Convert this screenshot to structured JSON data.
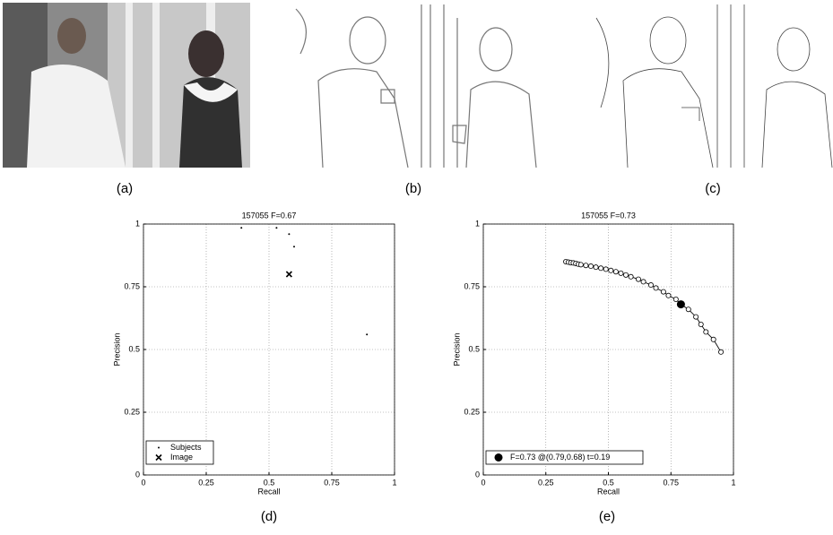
{
  "figure_labels": [
    "(a)",
    "(b)",
    "(c)",
    "(d)",
    "(e)"
  ],
  "chart_data": [
    {
      "type": "scatter",
      "title": "157055 F=0.67",
      "xlabel": "Recall",
      "ylabel": "Precision",
      "xlim": [
        0,
        1
      ],
      "ylim": [
        0,
        1
      ],
      "xticks": [
        0,
        0.25,
        0.5,
        0.75,
        1
      ],
      "yticks": [
        0,
        0.25,
        0.5,
        0.75,
        1
      ],
      "grid": true,
      "legend": "lower left",
      "series": [
        {
          "name": "Subjects",
          "color": "#000000",
          "marker": "dot",
          "x": [
            0.39,
            0.53,
            0.58,
            0.6,
            0.89
          ],
          "values": [
            0.985,
            0.985,
            0.96,
            0.91,
            0.56
          ]
        },
        {
          "name": "Image",
          "color": "#000000",
          "marker": "x",
          "x": [
            0.58
          ],
          "values": [
            0.8
          ]
        }
      ]
    },
    {
      "type": "line",
      "title": "157055 F=0.73",
      "xlabel": "Recall",
      "ylabel": "Precision",
      "xlim": [
        0,
        1
      ],
      "ylim": [
        0,
        1
      ],
      "xticks": [
        0,
        0.25,
        0.5,
        0.75,
        1
      ],
      "yticks": [
        0,
        0.25,
        0.5,
        0.75,
        1
      ],
      "grid": true,
      "legend": "lower left",
      "series": [
        {
          "color": "#000000",
          "marker": "circle",
          "line": true,
          "x": [
            0.33,
            0.34,
            0.35,
            0.36,
            0.37,
            0.38,
            0.39,
            0.41,
            0.43,
            0.45,
            0.47,
            0.49,
            0.51,
            0.53,
            0.55,
            0.57,
            0.59,
            0.62,
            0.64,
            0.67,
            0.69,
            0.72,
            0.74,
            0.77,
            0.79,
            0.82,
            0.85,
            0.87,
            0.89,
            0.92,
            0.95
          ],
          "values": [
            0.85,
            0.848,
            0.846,
            0.845,
            0.843,
            0.84,
            0.838,
            0.835,
            0.832,
            0.828,
            0.824,
            0.82,
            0.815,
            0.81,
            0.804,
            0.797,
            0.79,
            0.78,
            0.77,
            0.757,
            0.745,
            0.73,
            0.715,
            0.7,
            0.68,
            0.66,
            0.63,
            0.6,
            0.57,
            0.54,
            0.49
          ]
        },
        {
          "name": "F=0.73 @(0.79,0.68) t=0.19",
          "color": "#000000",
          "marker": "filled-circle",
          "x": [
            0.79
          ],
          "values": [
            0.68
          ]
        }
      ]
    }
  ]
}
